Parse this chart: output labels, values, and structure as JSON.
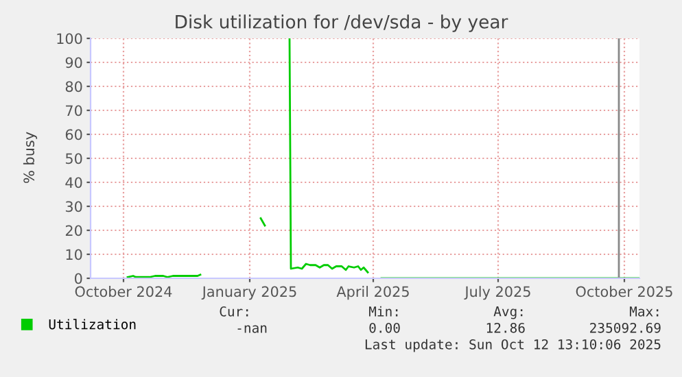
{
  "chart_data": {
    "type": "line",
    "title": "Disk utilization for /dev/sda - by year",
    "ylabel": "% busy",
    "xlim": [
      "2024-09-07",
      "2025-10-12"
    ],
    "xticks": [
      {
        "value": "2024-10-01",
        "label": "October 2024"
      },
      {
        "value": "2025-01-01",
        "label": "January 2025"
      },
      {
        "value": "2025-04-01",
        "label": "April 2025"
      },
      {
        "value": "2025-07-01",
        "label": "July 2025"
      },
      {
        "value": "2025-10-01",
        "label": "October 2025"
      }
    ],
    "ylim": [
      0,
      100
    ],
    "yticks": [
      0,
      10,
      20,
      30,
      40,
      50,
      60,
      70,
      80,
      90,
      100
    ],
    "grid": true,
    "legend": "bottom left",
    "series": [
      {
        "name": "Utilization",
        "color": "#00cc00",
        "x": [
          "2024-10-04",
          "2024-10-08",
          "2024-10-10",
          "2024-10-20",
          "2024-10-24",
          "2024-10-30",
          "2024-11-02",
          "2024-11-06",
          "2024-11-24",
          "2024-11-26",
          "2024-12-20",
          "2025-01-09",
          "2025-01-12",
          "2025-01-20",
          "2025-01-30",
          "2025-01-31",
          "2025-02-05",
          "2025-02-08",
          "2025-02-11",
          "2025-02-14",
          "2025-02-18",
          "2025-02-21",
          "2025-02-24",
          "2025-02-27",
          "2025-03-02",
          "2025-03-05",
          "2025-03-09",
          "2025-03-12",
          "2025-03-14",
          "2025-03-18",
          "2025-03-21",
          "2025-03-23",
          "2025-03-25",
          "2025-03-28",
          "2025-04-02",
          "2025-04-07",
          "2025-10-12"
        ],
        "values": [
          0.5,
          1.0,
          0.5,
          0.5,
          1.0,
          1.0,
          0.5,
          1.0,
          1.0,
          1.5,
          null,
          25,
          22,
          null,
          100,
          4,
          4.5,
          4,
          6,
          5.5,
          5.5,
          4.5,
          5.5,
          5.5,
          4,
          5,
          5,
          3.5,
          5,
          4.5,
          5,
          3.5,
          4.5,
          2.5,
          null,
          0,
          0
        ]
      }
    ],
    "ref_lines": [
      {
        "axis": "x",
        "value": "2025-09-27",
        "color": "#888888"
      }
    ],
    "annotations": [
      "Cur:",
      "Min:",
      "Avg:",
      "Max:",
      "-nan",
      "0.00",
      "12.86",
      "235092.69",
      "Last update: Sun Oct 12 13:10:06 2025"
    ]
  }
}
